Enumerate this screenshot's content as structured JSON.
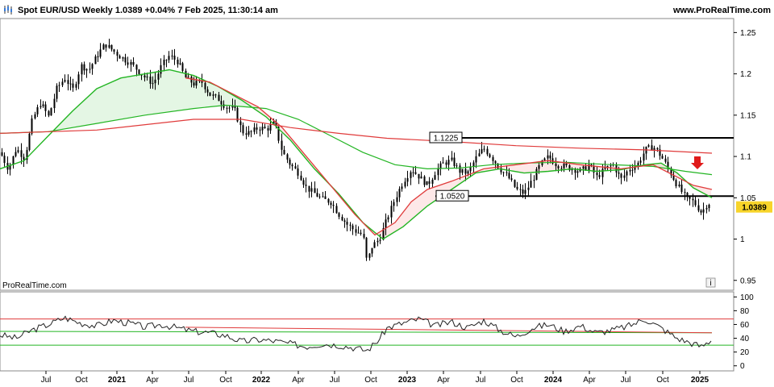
{
  "header": {
    "title": "Spot EUR/USD Weekly 1.0389 +0.04% 7 Feb 2025, 11:30:14 am",
    "site": "www.ProRealTime.com"
  },
  "watermark": "ProRealTime.com",
  "info_icon": "i",
  "chart_data": {
    "type": "candlestick",
    "title": "Spot EUR/USD Weekly",
    "last_price": "1.0389",
    "colors": {
      "candles": "#000000",
      "ma_fast": "#23b523",
      "ma_slow": "#e03b3b",
      "fill_up": "#cdeecd",
      "fill_down": "#fbd5d5",
      "arrow": "#e01a1a",
      "price_tag": "#f7d42a"
    },
    "price_axis": {
      "range": [
        0.94,
        1.265
      ],
      "ticks": [
        "1.25",
        "1.2",
        "1.15",
        "1.1",
        "1.05",
        "1",
        "0.95"
      ]
    },
    "osc_axis": {
      "range": [
        -5,
        105
      ],
      "ticks": [
        "100",
        "80",
        "60",
        "40",
        "20",
        "0"
      ]
    },
    "x_ticks": [
      "Jul",
      "Oct",
      "2021",
      "Apr",
      "Jul",
      "Oct",
      "2022",
      "Apr",
      "Jul",
      "Oct",
      "2023",
      "Apr",
      "Jul",
      "Oct",
      "2024",
      "Apr",
      "Jul",
      "Oct",
      "2025"
    ],
    "x_ticks_bold": [
      "2021",
      "2022",
      "2023",
      "2024",
      "2025"
    ],
    "price_path": [
      [
        0,
        1.105
      ],
      [
        10,
        1.085
      ],
      [
        20,
        1.11
      ],
      [
        30,
        1.098
      ],
      [
        40,
        1.145
      ],
      [
        50,
        1.165
      ],
      [
        60,
        1.148
      ],
      [
        70,
        1.182
      ],
      [
        80,
        1.195
      ],
      [
        90,
        1.18
      ],
      [
        100,
        1.21
      ],
      [
        110,
        1.205
      ],
      [
        120,
        1.222
      ],
      [
        130,
        1.236
      ],
      [
        140,
        1.228
      ],
      [
        150,
        1.22
      ],
      [
        160,
        1.214
      ],
      [
        170,
        1.205
      ],
      [
        180,
        1.195
      ],
      [
        190,
        1.188
      ],
      [
        200,
        1.21
      ],
      [
        210,
        1.222
      ],
      [
        220,
        1.215
      ],
      [
        230,
        1.195
      ],
      [
        240,
        1.188
      ],
      [
        250,
        1.19
      ],
      [
        260,
        1.175
      ],
      [
        270,
        1.17
      ],
      [
        280,
        1.16
      ],
      [
        290,
        1.158
      ],
      [
        300,
        1.13
      ],
      [
        310,
        1.128
      ],
      [
        320,
        1.135
      ],
      [
        330,
        1.133
      ],
      [
        340,
        1.14
      ],
      [
        350,
        1.105
      ],
      [
        360,
        1.09
      ],
      [
        370,
        1.08
      ],
      [
        380,
        1.062
      ],
      [
        390,
        1.055
      ],
      [
        400,
        1.048
      ],
      [
        410,
        1.045
      ],
      [
        420,
        1.03
      ],
      [
        430,
        1.018
      ],
      [
        440,
        1.01
      ],
      [
        450,
        1.005
      ],
      [
        455,
        0.97
      ],
      [
        460,
        0.99
      ],
      [
        470,
        1.0
      ],
      [
        480,
        1.025
      ],
      [
        490,
        1.05
      ],
      [
        500,
        1.07
      ],
      [
        510,
        1.085
      ],
      [
        520,
        1.075
      ],
      [
        530,
        1.065
      ],
      [
        540,
        1.082
      ],
      [
        550,
        1.092
      ],
      [
        560,
        1.095
      ],
      [
        570,
        1.082
      ],
      [
        580,
        1.08
      ],
      [
        590,
        1.098
      ],
      [
        600,
        1.11
      ],
      [
        610,
        1.098
      ],
      [
        620,
        1.085
      ],
      [
        630,
        1.075
      ],
      [
        640,
        1.06
      ],
      [
        650,
        1.055
      ],
      [
        660,
        1.072
      ],
      [
        670,
        1.09
      ],
      [
        680,
        1.1
      ],
      [
        690,
        1.09
      ],
      [
        700,
        1.088
      ],
      [
        710,
        1.085
      ],
      [
        720,
        1.082
      ],
      [
        730,
        1.09
      ],
      [
        740,
        1.075
      ],
      [
        750,
        1.085
      ],
      [
        760,
        1.09
      ],
      [
        770,
        1.072
      ],
      [
        780,
        1.085
      ],
      [
        790,
        1.09
      ],
      [
        800,
        1.108
      ],
      [
        810,
        1.112
      ],
      [
        820,
        1.1
      ],
      [
        830,
        1.082
      ],
      [
        840,
        1.065
      ],
      [
        850,
        1.05
      ],
      [
        860,
        1.045
      ],
      [
        870,
        1.032
      ],
      [
        878,
        1.045
      ],
      [
        883,
        1.0389
      ]
    ],
    "ma_fast_path": [
      [
        0,
        1.085
      ],
      [
        30,
        1.095
      ],
      [
        60,
        1.125
      ],
      [
        90,
        1.155
      ],
      [
        120,
        1.182
      ],
      [
        150,
        1.195
      ],
      [
        180,
        1.2
      ],
      [
        210,
        1.205
      ],
      [
        240,
        1.198
      ],
      [
        270,
        1.185
      ],
      [
        300,
        1.168
      ],
      [
        330,
        1.148
      ],
      [
        360,
        1.12
      ],
      [
        390,
        1.085
      ],
      [
        420,
        1.055
      ],
      [
        450,
        1.02
      ],
      [
        475,
        1.0
      ],
      [
        500,
        1.015
      ],
      [
        530,
        1.04
      ],
      [
        560,
        1.06
      ],
      [
        590,
        1.08
      ],
      [
        620,
        1.085
      ],
      [
        650,
        1.08
      ],
      [
        680,
        1.082
      ],
      [
        710,
        1.085
      ],
      [
        740,
        1.082
      ],
      [
        770,
        1.084
      ],
      [
        800,
        1.09
      ],
      [
        820,
        1.092
      ],
      [
        840,
        1.08
      ],
      [
        860,
        1.062
      ],
      [
        883,
        1.05
      ]
    ],
    "ma_slow_path": [
      [
        0,
        1.128
      ],
      [
        60,
        1.13
      ],
      [
        120,
        1.14
      ],
      [
        180,
        1.15
      ],
      [
        240,
        1.158
      ],
      [
        280,
        1.162
      ],
      [
        330,
        1.158
      ],
      [
        370,
        1.145
      ],
      [
        410,
        1.125
      ],
      [
        450,
        1.105
      ],
      [
        490,
        1.09
      ],
      [
        530,
        1.085
      ],
      [
        570,
        1.086
      ],
      [
        610,
        1.09
      ],
      [
        650,
        1.092
      ],
      [
        700,
        1.093
      ],
      [
        760,
        1.09
      ],
      [
        810,
        1.088
      ],
      [
        850,
        1.082
      ],
      [
        883,
        1.078
      ]
    ],
    "ma_red_fast_path": [
      [
        230,
        1.195
      ],
      [
        260,
        1.19
      ],
      [
        290,
        1.175
      ],
      [
        320,
        1.16
      ],
      [
        350,
        1.135
      ],
      [
        380,
        1.1
      ],
      [
        410,
        1.065
      ],
      [
        440,
        1.03
      ],
      [
        465,
        1.005
      ],
      [
        490,
        1.02
      ],
      [
        510,
        1.045
      ],
      [
        530,
        1.06
      ],
      [
        560,
        1.07
      ],
      [
        600,
        1.085
      ],
      [
        640,
        1.09
      ],
      [
        680,
        1.095
      ],
      [
        720,
        1.09
      ],
      [
        770,
        1.085
      ],
      [
        810,
        1.09
      ],
      [
        840,
        1.075
      ],
      [
        860,
        1.065
      ],
      [
        883,
        1.06
      ]
    ],
    "osc_path": [
      [
        0,
        45
      ],
      [
        20,
        40
      ],
      [
        40,
        52
      ],
      [
        60,
        60
      ],
      [
        80,
        70
      ],
      [
        100,
        62
      ],
      [
        120,
        58
      ],
      [
        140,
        66
      ],
      [
        160,
        62
      ],
      [
        180,
        56
      ],
      [
        200,
        60
      ],
      [
        220,
        55
      ],
      [
        240,
        50
      ],
      [
        260,
        48
      ],
      [
        280,
        44
      ],
      [
        300,
        35
      ],
      [
        320,
        38
      ],
      [
        340,
        36
      ],
      [
        360,
        32
      ],
      [
        380,
        28
      ],
      [
        400,
        32
      ],
      [
        420,
        30
      ],
      [
        440,
        26
      ],
      [
        455,
        22
      ],
      [
        470,
        38
      ],
      [
        480,
        55
      ],
      [
        500,
        62
      ],
      [
        520,
        68
      ],
      [
        540,
        58
      ],
      [
        560,
        64
      ],
      [
        580,
        55
      ],
      [
        600,
        66
      ],
      [
        620,
        52
      ],
      [
        640,
        42
      ],
      [
        660,
        55
      ],
      [
        680,
        60
      ],
      [
        700,
        50
      ],
      [
        720,
        58
      ],
      [
        740,
        48
      ],
      [
        760,
        52
      ],
      [
        780,
        58
      ],
      [
        800,
        68
      ],
      [
        820,
        55
      ],
      [
        840,
        40
      ],
      [
        860,
        32
      ],
      [
        870,
        28
      ],
      [
        883,
        38
      ]
    ],
    "osc_upper": 68,
    "osc_lower": 30,
    "osc_mid_start": 50,
    "osc_mid_end": 48,
    "resistance": {
      "value": 1.1225,
      "label": "1.1225"
    },
    "support": {
      "value": 1.052,
      "label": "1.0520"
    }
  }
}
